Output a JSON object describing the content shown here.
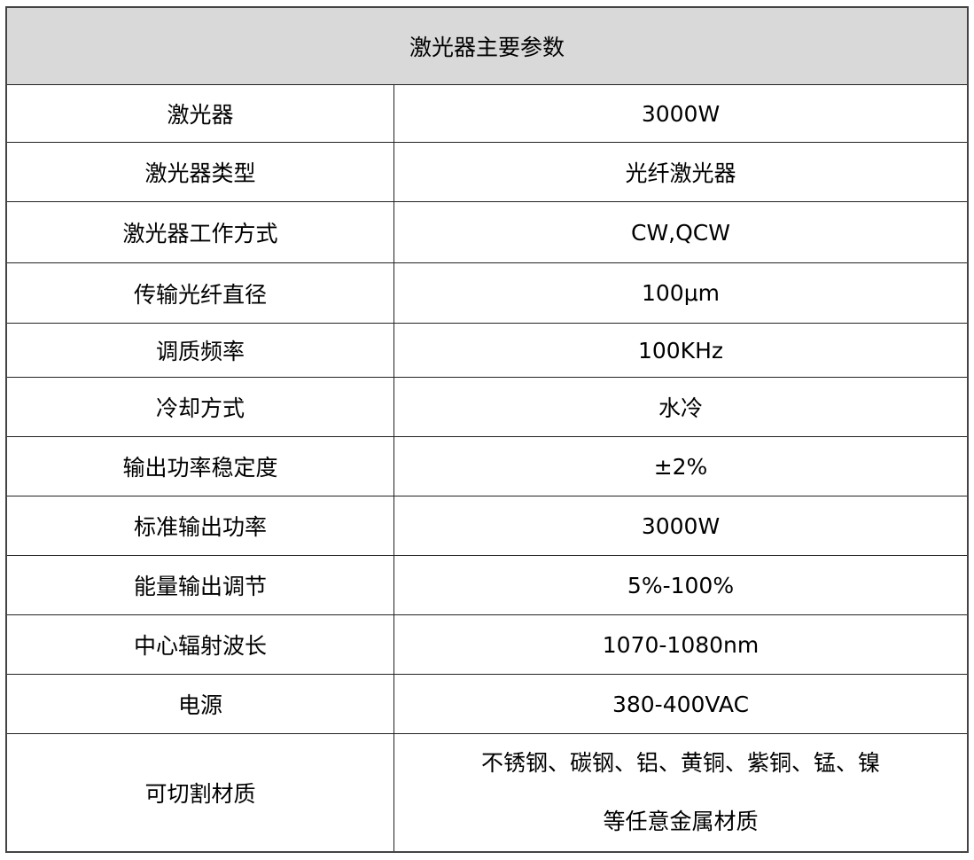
{
  "table": {
    "title": "激光器主要参数",
    "rows": [
      {
        "label": "激光器",
        "value": "3000W"
      },
      {
        "label": "激光器类型",
        "value": "光纤激光器"
      },
      {
        "label": "激光器工作方式",
        "value": "CW,QCW"
      },
      {
        "label": "传输光纤直径",
        "value": "100μm"
      },
      {
        "label": "调质频率",
        "value": "100KHz"
      },
      {
        "label": "冷却方式",
        "value": "水冷"
      },
      {
        "label": "输出功率稳定度",
        "value": "±2%"
      },
      {
        "label": "标准输出功率",
        "value": "3000W"
      },
      {
        "label": "能量输出调节",
        "value": "5%-100%"
      },
      {
        "label": "中心辐射波长",
        "value": "1070-1080nm"
      },
      {
        "label": "电源",
        "value": "380-400VAC"
      }
    ],
    "materials": {
      "label": "可切割材质",
      "line1": "不锈钢、碳钢、铝、黄铜、紫铜、锰、镍",
      "line2": "等任意金属材质"
    }
  }
}
